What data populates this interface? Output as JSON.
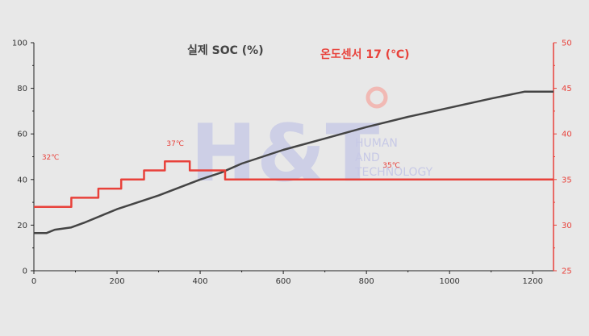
{
  "chart_data": {
    "type": "line",
    "title_left": "실제 SOC (%)",
    "title_right": "온도센서 17 (℃)",
    "x_ticks": [
      "0",
      "200",
      "400",
      "600",
      "800",
      "1000",
      "1200"
    ],
    "y_left_ticks": [
      "0",
      "20",
      "40",
      "60",
      "80",
      "100"
    ],
    "y_right_ticks": [
      "25",
      "30",
      "35",
      "40",
      "45",
      "50"
    ],
    "xlim": [
      0,
      1250
    ],
    "ylim_left": [
      0,
      100
    ],
    "ylim_right": [
      25,
      50
    ],
    "grid": false,
    "series": [
      {
        "name": "실제 SOC (%)",
        "axis": "left",
        "color": "#444444",
        "points": [
          [
            0,
            16.5
          ],
          [
            30,
            16.5
          ],
          [
            50,
            18
          ],
          [
            90,
            19
          ],
          [
            120,
            21
          ],
          [
            200,
            27
          ],
          [
            300,
            33
          ],
          [
            400,
            40
          ],
          [
            450,
            43
          ],
          [
            500,
            47
          ],
          [
            600,
            53
          ],
          [
            700,
            58
          ],
          [
            800,
            63
          ],
          [
            900,
            67.5
          ],
          [
            1000,
            71.5
          ],
          [
            1100,
            75.5
          ],
          [
            1180,
            78.5
          ],
          [
            1250,
            78.5
          ]
        ]
      },
      {
        "name": "온도센서 17 (℃)",
        "axis": "right",
        "color": "#e8413a",
        "points": [
          [
            0,
            32
          ],
          [
            90,
            32
          ],
          [
            90,
            33
          ],
          [
            155,
            33
          ],
          [
            155,
            34
          ],
          [
            210,
            34
          ],
          [
            210,
            35
          ],
          [
            265,
            35
          ],
          [
            265,
            36
          ],
          [
            315,
            36
          ],
          [
            315,
            37
          ],
          [
            375,
            37
          ],
          [
            375,
            36
          ],
          [
            460,
            36
          ],
          [
            460,
            35
          ],
          [
            1250,
            35
          ]
        ]
      }
    ],
    "annotations": [
      {
        "text": "32℃",
        "x": 40,
        "y": 37.2,
        "axis": "right"
      },
      {
        "text": "37℃",
        "x": 340,
        "y": 38.7,
        "axis": "right"
      },
      {
        "text": "35℃",
        "x": 860,
        "y": 36.3,
        "axis": "right"
      }
    ]
  },
  "watermark": {
    "logo": "H&T",
    "lines": [
      "HUMAN",
      "AND",
      "TECHNOLOGY"
    ]
  }
}
